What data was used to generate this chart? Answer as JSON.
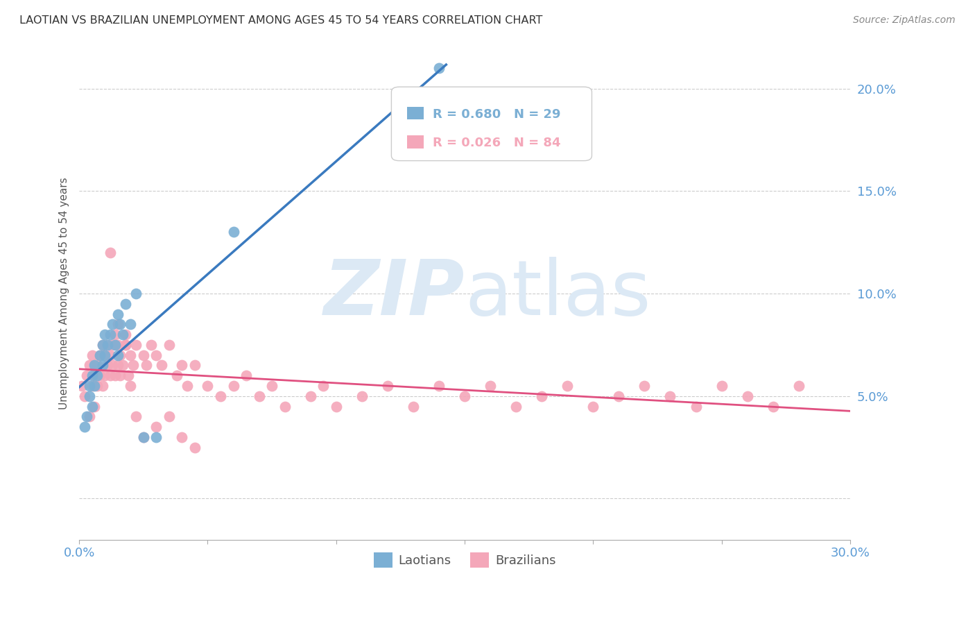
{
  "title": "LAOTIAN VS BRAZILIAN UNEMPLOYMENT AMONG AGES 45 TO 54 YEARS CORRELATION CHART",
  "source": "Source: ZipAtlas.com",
  "ylabel": "Unemployment Among Ages 45 to 54 years",
  "xlim": [
    0.0,
    0.3
  ],
  "ylim": [
    -0.02,
    0.22
  ],
  "xticks": [
    0.0,
    0.05,
    0.1,
    0.15,
    0.2,
    0.25,
    0.3
  ],
  "xtick_labels": [
    "0.0%",
    "",
    "",
    "",
    "",
    "",
    "30.0%"
  ],
  "ytick_positions": [
    0.0,
    0.05,
    0.1,
    0.15,
    0.2
  ],
  "ytick_labels": [
    "",
    "5.0%",
    "10.0%",
    "15.0%",
    "20.0%"
  ],
  "grid_color": "#cccccc",
  "title_color": "#333333",
  "axis_color": "#5b9bd5",
  "watermark_zip": "ZIP",
  "watermark_atlas": "atlas",
  "watermark_color": "#dce9f5",
  "laotian_color": "#7bafd4",
  "brazilian_color": "#f4a7b9",
  "laotian_line_color": "#3a7abf",
  "brazilian_line_color": "#e05080",
  "laotian_r": 0.68,
  "laotian_n": 29,
  "brazilian_r": 0.026,
  "brazilian_n": 84,
  "laotian_x": [
    0.002,
    0.003,
    0.004,
    0.004,
    0.005,
    0.005,
    0.006,
    0.006,
    0.007,
    0.008,
    0.009,
    0.009,
    0.01,
    0.01,
    0.011,
    0.012,
    0.013,
    0.014,
    0.015,
    0.015,
    0.016,
    0.017,
    0.018,
    0.02,
    0.022,
    0.025,
    0.03,
    0.06,
    0.14
  ],
  "laotian_y": [
    0.035,
    0.04,
    0.05,
    0.055,
    0.045,
    0.06,
    0.055,
    0.065,
    0.06,
    0.07,
    0.065,
    0.075,
    0.07,
    0.08,
    0.075,
    0.08,
    0.085,
    0.075,
    0.07,
    0.09,
    0.085,
    0.08,
    0.095,
    0.085,
    0.1,
    0.03,
    0.03,
    0.13,
    0.21
  ],
  "brazilian_x": [
    0.001,
    0.002,
    0.003,
    0.004,
    0.004,
    0.005,
    0.005,
    0.006,
    0.006,
    0.007,
    0.007,
    0.008,
    0.008,
    0.009,
    0.009,
    0.01,
    0.01,
    0.011,
    0.011,
    0.012,
    0.012,
    0.013,
    0.013,
    0.014,
    0.014,
    0.015,
    0.015,
    0.016,
    0.016,
    0.017,
    0.018,
    0.018,
    0.019,
    0.02,
    0.021,
    0.022,
    0.025,
    0.026,
    0.028,
    0.03,
    0.032,
    0.035,
    0.038,
    0.04,
    0.042,
    0.045,
    0.05,
    0.055,
    0.06,
    0.065,
    0.07,
    0.075,
    0.08,
    0.09,
    0.095,
    0.1,
    0.11,
    0.12,
    0.13,
    0.14,
    0.15,
    0.16,
    0.17,
    0.18,
    0.19,
    0.2,
    0.21,
    0.22,
    0.23,
    0.24,
    0.25,
    0.26,
    0.27,
    0.28,
    0.012,
    0.015,
    0.018,
    0.02,
    0.022,
    0.025,
    0.03,
    0.035,
    0.04,
    0.045
  ],
  "brazilian_y": [
    0.055,
    0.05,
    0.06,
    0.04,
    0.065,
    0.055,
    0.07,
    0.045,
    0.06,
    0.055,
    0.065,
    0.06,
    0.07,
    0.055,
    0.075,
    0.06,
    0.07,
    0.065,
    0.075,
    0.06,
    0.07,
    0.065,
    0.075,
    0.06,
    0.08,
    0.065,
    0.075,
    0.06,
    0.07,
    0.065,
    0.075,
    0.08,
    0.06,
    0.07,
    0.065,
    0.075,
    0.07,
    0.065,
    0.075,
    0.07,
    0.065,
    0.075,
    0.06,
    0.065,
    0.055,
    0.065,
    0.055,
    0.05,
    0.055,
    0.06,
    0.05,
    0.055,
    0.045,
    0.05,
    0.055,
    0.045,
    0.05,
    0.055,
    0.045,
    0.055,
    0.05,
    0.055,
    0.045,
    0.05,
    0.055,
    0.045,
    0.05,
    0.055,
    0.05,
    0.045,
    0.055,
    0.05,
    0.045,
    0.055,
    0.12,
    0.085,
    0.075,
    0.055,
    0.04,
    0.03,
    0.035,
    0.04,
    0.03,
    0.025
  ]
}
